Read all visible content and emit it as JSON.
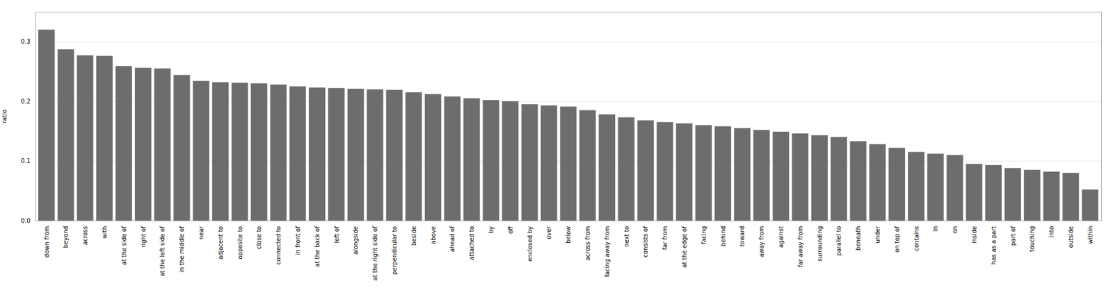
{
  "chart_data": {
    "type": "bar",
    "categories": [
      "down from",
      "beyond",
      "across",
      "with",
      "at the side of",
      "right of",
      "at the left side of",
      "in the middle of",
      "near",
      "adjacent to",
      "opposite to",
      "close to",
      "connected to",
      "in front of",
      "at the back of",
      "left of",
      "alongside",
      "at the right side of",
      "perpendicular to",
      "beside",
      "above",
      "ahead of",
      "attached to",
      "by",
      "off",
      "enclosed by",
      "over",
      "below",
      "across from",
      "facing away from",
      "next to",
      "consists of",
      "far from",
      "at the edge of",
      "facing",
      "behind",
      "toward",
      "away from",
      "against",
      "far away from",
      "surrounding",
      "parallel to",
      "beneath",
      "under",
      "on top of",
      "contains",
      "in",
      "on",
      "inside",
      "has as a part",
      "part of",
      "touching",
      "into",
      "outside",
      "within"
    ],
    "values": [
      0.32,
      0.287,
      0.277,
      0.276,
      0.259,
      0.256,
      0.255,
      0.244,
      0.234,
      0.232,
      0.231,
      0.23,
      0.228,
      0.225,
      0.223,
      0.222,
      0.221,
      0.22,
      0.219,
      0.215,
      0.212,
      0.208,
      0.205,
      0.202,
      0.2,
      0.195,
      0.193,
      0.191,
      0.185,
      0.178,
      0.173,
      0.168,
      0.165,
      0.163,
      0.16,
      0.158,
      0.155,
      0.152,
      0.149,
      0.146,
      0.143,
      0.14,
      0.133,
      0.128,
      0.122,
      0.115,
      0.112,
      0.11,
      0.095,
      0.093,
      0.088,
      0.085,
      0.082,
      0.08,
      0.052
    ],
    "color": "#6d6d6d",
    "ylabel": "ratio",
    "ylim": [
      0,
      0.35
    ],
    "yticks": [
      {
        "value": 0,
        "label": "0.0"
      },
      0.1,
      0.2,
      0.3
    ],
    "grid": true
  }
}
